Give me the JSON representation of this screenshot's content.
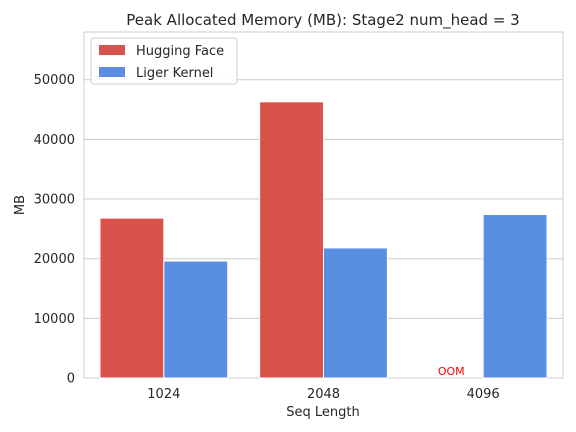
{
  "chart_data": {
    "type": "bar",
    "title": "Peak Allocated Memory (MB): Stage2 num_head = 3",
    "xlabel": "Seq Length",
    "ylabel": "MB",
    "categories": [
      "1024",
      "2048",
      "4096"
    ],
    "ylim": [
      0,
      58000
    ],
    "yticks": [
      0,
      10000,
      20000,
      30000,
      40000,
      50000
    ],
    "grid": true,
    "legend_position": "top-left",
    "series": [
      {
        "name": "Hugging Face",
        "color": "#d9534a",
        "values": [
          26800,
          46300,
          null
        ]
      },
      {
        "name": "Liger Kernel",
        "color": "#5a8ee0",
        "values": [
          19600,
          21800,
          27400
        ]
      }
    ],
    "annotations": [
      {
        "category": "4096",
        "series": "Hugging Face",
        "text": "OOM",
        "color": "#ff0000"
      }
    ]
  }
}
